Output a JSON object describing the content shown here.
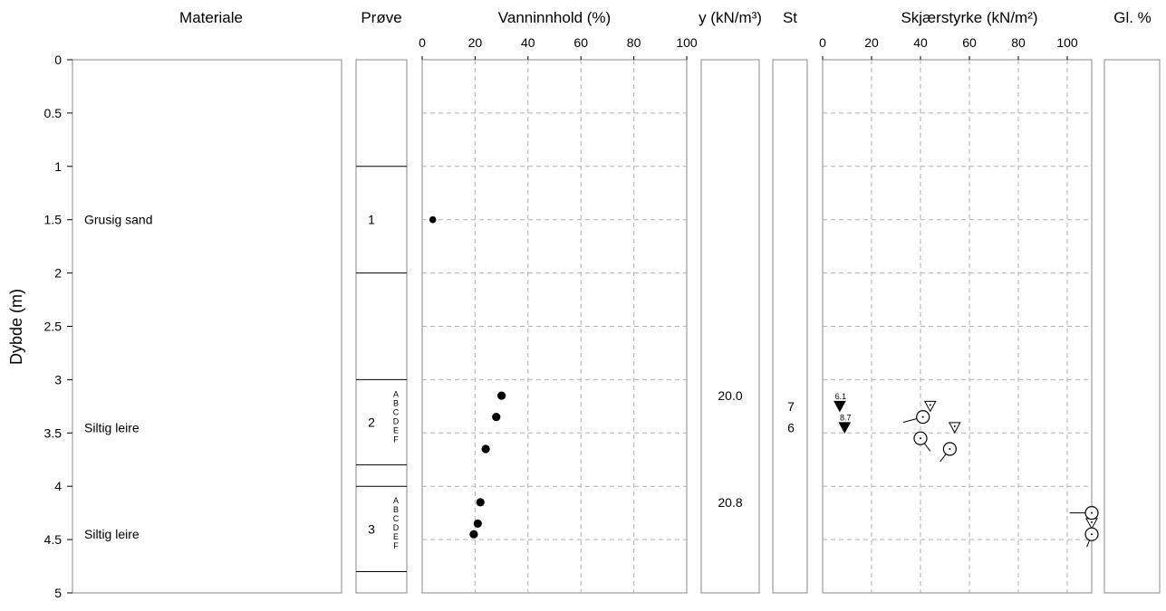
{
  "headers": {
    "materiale": "Materiale",
    "prove": "Prøve",
    "vanninnhold": "Vanninnhold (%)",
    "gamma": "y (kN/m³)",
    "st": "St",
    "skjaer": "Skjærstyrke (kN/m²)",
    "gl": "Gl. %"
  },
  "colors": {
    "line": "#000000",
    "grid": "#b0b0b0"
  },
  "chart_data": {
    "type": "scatter",
    "ylabel": "Dybde (m)",
    "ylim": [
      0,
      5
    ],
    "y_ticks": [
      "0",
      "0.5",
      "1",
      "1.5",
      "2",
      "2.5",
      "3",
      "3.5",
      "4",
      "4.5",
      "5"
    ],
    "materials": [
      {
        "depth": 1.5,
        "label": "Grusig sand"
      },
      {
        "depth": 3.45,
        "label": "Siltig leire"
      },
      {
        "depth": 4.45,
        "label": "Siltig leire"
      }
    ],
    "samples": [
      {
        "top": 1.0,
        "bottom": 2.0,
        "label": "1",
        "sub": []
      },
      {
        "top": 3.0,
        "bottom": 3.8,
        "label": "2",
        "sub": [
          "A",
          "B",
          "C",
          "D",
          "E",
          "F"
        ]
      },
      {
        "top": 4.0,
        "bottom": 4.8,
        "label": "3",
        "sub": [
          "A",
          "B",
          "C",
          "D",
          "E",
          "F"
        ]
      }
    ],
    "sample_boundaries": [
      1.0,
      2.0,
      3.0,
      3.8,
      4.0,
      4.8
    ],
    "water_content": {
      "xlim": [
        0,
        100
      ],
      "x_ticks": [
        "0",
        "20",
        "40",
        "60",
        "80",
        "100"
      ],
      "points": [
        {
          "x": 4,
          "depth": 1.5,
          "small": true
        },
        {
          "x": 30,
          "depth": 3.15
        },
        {
          "x": 28,
          "depth": 3.35
        },
        {
          "x": 24,
          "depth": 3.65
        },
        {
          "x": 22,
          "depth": 4.15
        },
        {
          "x": 21,
          "depth": 4.35
        },
        {
          "x": 19.5,
          "depth": 4.45
        }
      ]
    },
    "unit_weight": [
      {
        "depth": 3.15,
        "value": "20.0"
      },
      {
        "depth": 4.15,
        "value": "20.8"
      }
    ],
    "sensitivity": [
      {
        "depth": 3.25,
        "value": "7"
      },
      {
        "depth": 3.45,
        "value": "6"
      }
    ],
    "shear_strength": {
      "xlim": [
        0,
        110
      ],
      "x_ticks": [
        "0",
        "20",
        "40",
        "60",
        "80",
        "100"
      ],
      "filled_triangles": [
        {
          "x": 7,
          "depth": 3.25,
          "label": "6.1"
        },
        {
          "x": 9,
          "depth": 3.45,
          "label": "8.7"
        }
      ],
      "open_triangles": [
        {
          "x": 44,
          "depth": 3.25
        },
        {
          "x": 54,
          "depth": 3.45
        },
        {
          "x": 110,
          "depth": 4.35
        }
      ],
      "circles": [
        {
          "x": 41,
          "depth": 3.35,
          "tail_dx": -8,
          "tail_dy": 0.05
        },
        {
          "x": 40,
          "depth": 3.55,
          "tail_dx": 4,
          "tail_dy": 0.12
        },
        {
          "x": 52,
          "depth": 3.65,
          "tail_dx": -4,
          "tail_dy": 0.12
        },
        {
          "x": 110,
          "depth": 4.25,
          "tail_dx": -9,
          "tail_dy": 0
        },
        {
          "x": 110,
          "depth": 4.45,
          "tail_dx": -2,
          "tail_dy": 0.12
        }
      ]
    }
  }
}
